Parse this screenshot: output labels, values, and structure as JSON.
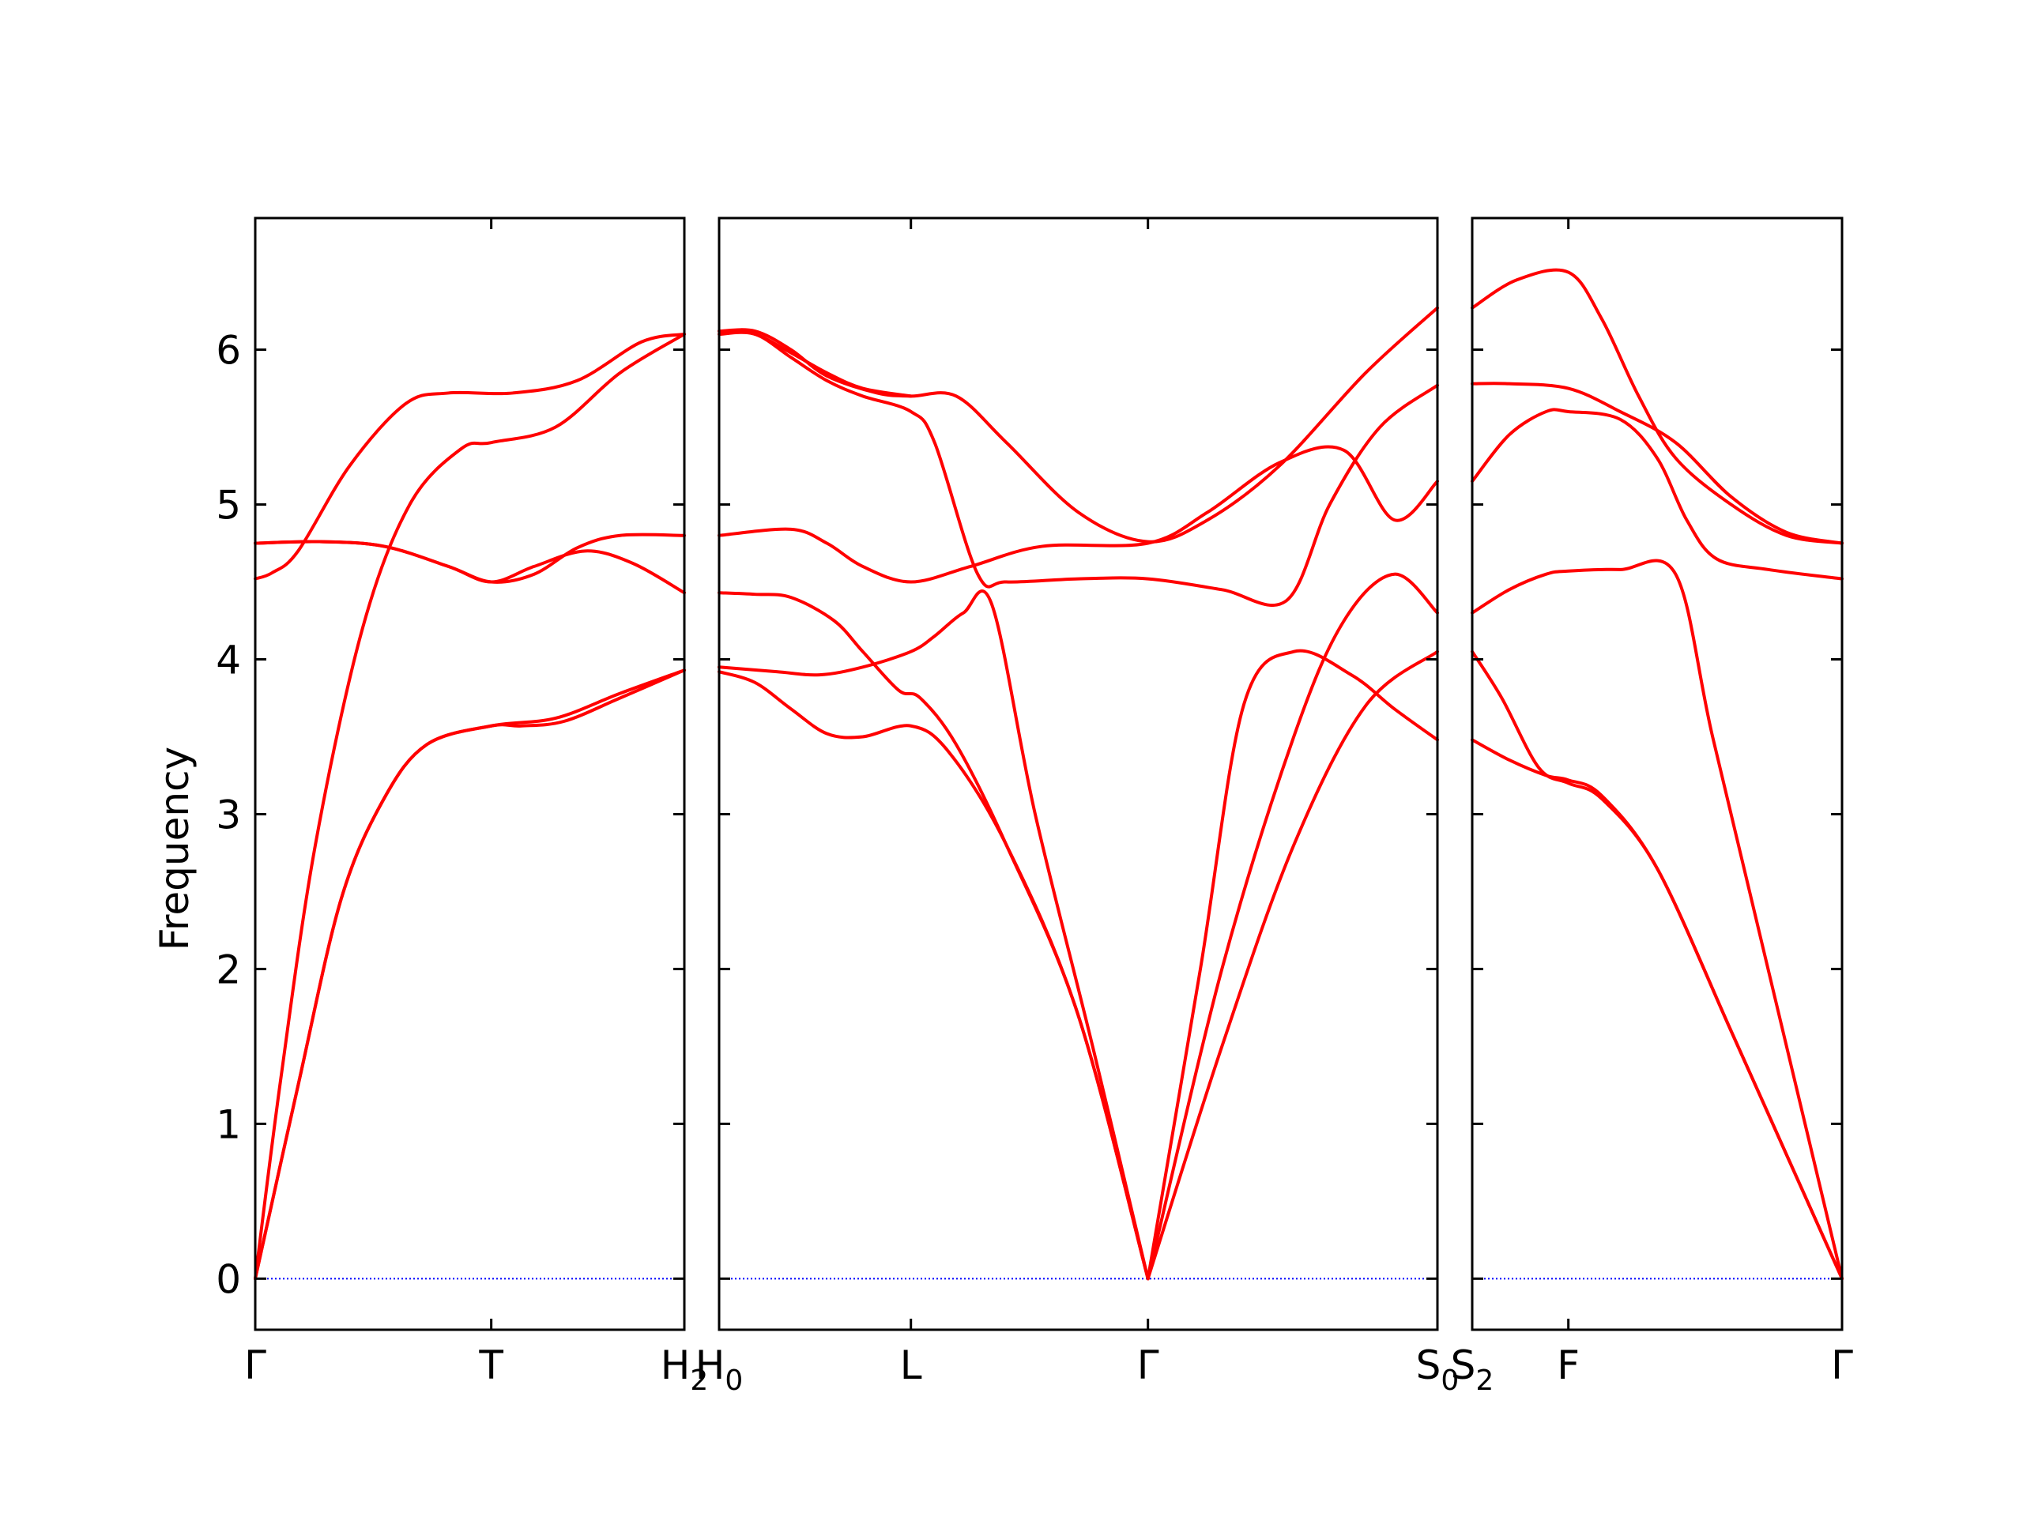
{
  "chart_data": {
    "type": "line",
    "title": "",
    "ylabel": "Frequency",
    "ylim": [
      -0.33,
      6.85
    ],
    "y_ticks": [
      0,
      1,
      2,
      3,
      4,
      5,
      6
    ],
    "grid": false,
    "legend": "none",
    "colors": {
      "bands": "#ff0000",
      "zero_line": "#0000ff",
      "frame": "#000000"
    },
    "panels": [
      {
        "name": "panel-1",
        "x_labels": [
          {
            "base": "Γ",
            "sub": ""
          },
          {
            "base": "T",
            "sub": ""
          },
          {
            "base": "H",
            "sub": "2"
          }
        ],
        "x_ticks": [
          0,
          0.55,
          1
        ],
        "series": [
          {
            "points": [
              [
                0,
                0
              ],
              [
                0.1,
                1.25
              ],
              [
                0.2,
                2.45
              ],
              [
                0.3,
                3.1
              ],
              [
                0.4,
                3.45
              ],
              [
                0.55,
                3.57
              ],
              [
                0.7,
                3.62
              ],
              [
                0.85,
                3.78
              ],
              [
                1,
                3.93
              ]
            ]
          },
          {
            "points": [
              [
                0,
                0
              ],
              [
                0.06,
                1.3
              ],
              [
                0.14,
                2.8
              ],
              [
                0.25,
                4.2
              ],
              [
                0.36,
                5.0
              ],
              [
                0.48,
                5.36
              ],
              [
                0.55,
                5.4
              ],
              [
                0.7,
                5.5
              ],
              [
                0.85,
                5.85
              ],
              [
                1,
                6.1
              ]
            ]
          },
          {
            "points": [
              [
                0,
                0
              ],
              [
                0.1,
                1.25
              ],
              [
                0.2,
                2.45
              ],
              [
                0.3,
                3.1
              ],
              [
                0.4,
                3.45
              ],
              [
                0.55,
                3.57
              ],
              [
                0.62,
                3.57
              ],
              [
                0.72,
                3.6
              ],
              [
                0.85,
                3.75
              ],
              [
                1,
                3.93
              ]
            ]
          },
          {
            "points": [
              [
                0,
                4.52
              ],
              [
                0.04,
                4.56
              ],
              [
                0.1,
                4.7
              ],
              [
                0.22,
                5.25
              ],
              [
                0.35,
                5.65
              ],
              [
                0.45,
                5.72
              ],
              [
                0.6,
                5.72
              ],
              [
                0.75,
                5.8
              ],
              [
                0.9,
                6.05
              ],
              [
                1,
                6.1
              ]
            ]
          },
          {
            "points": [
              [
                0,
                4.75
              ],
              [
                0.15,
                4.76
              ],
              [
                0.3,
                4.73
              ],
              [
                0.45,
                4.6
              ],
              [
                0.55,
                4.5
              ],
              [
                0.65,
                4.55
              ],
              [
                0.75,
                4.72
              ],
              [
                0.85,
                4.8
              ],
              [
                1,
                4.8
              ]
            ]
          },
          {
            "points": [
              [
                0,
                4.75
              ],
              [
                0.15,
                4.76
              ],
              [
                0.3,
                4.73
              ],
              [
                0.45,
                4.6
              ],
              [
                0.55,
                4.5
              ],
              [
                0.65,
                4.6
              ],
              [
                0.77,
                4.7
              ],
              [
                0.88,
                4.62
              ],
              [
                1,
                4.43
              ]
            ]
          }
        ]
      },
      {
        "name": "panel-2",
        "x_labels": [
          {
            "base": "H",
            "sub": "0"
          },
          {
            "base": "L",
            "sub": ""
          },
          {
            "base": "Γ",
            "sub": ""
          },
          {
            "base": "S",
            "sub": "0"
          }
        ],
        "x_ticks": [
          0,
          0.267,
          0.597,
          1
        ],
        "series": [
          {
            "points": [
              [
                0,
                3.92
              ],
              [
                0.05,
                3.85
              ],
              [
                0.1,
                3.68
              ],
              [
                0.15,
                3.52
              ],
              [
                0.2,
                3.5
              ],
              [
                0.267,
                3.57
              ],
              [
                0.32,
                3.4
              ],
              [
                0.4,
                2.8
              ],
              [
                0.5,
                1.7
              ],
              [
                0.597,
                0
              ]
            ]
          },
          {
            "points": [
              [
                0,
                3.95
              ],
              [
                0.08,
                3.92
              ],
              [
                0.14,
                3.9
              ],
              [
                0.2,
                3.95
              ],
              [
                0.267,
                4.05
              ],
              [
                0.3,
                4.15
              ],
              [
                0.34,
                4.3
              ],
              [
                0.38,
                4.35
              ],
              [
                0.44,
                3.0
              ],
              [
                0.52,
                1.5
              ],
              [
                0.597,
                0
              ]
            ]
          },
          {
            "points": [
              [
                0,
                4.43
              ],
              [
                0.05,
                4.42
              ],
              [
                0.1,
                4.4
              ],
              [
                0.16,
                4.25
              ],
              [
                0.2,
                4.05
              ],
              [
                0.25,
                3.8
              ],
              [
                0.28,
                3.75
              ],
              [
                0.33,
                3.45
              ],
              [
                0.4,
                2.8
              ],
              [
                0.5,
                1.7
              ],
              [
                0.597,
                0
              ]
            ]
          },
          {
            "points": [
              [
                0,
                4.8
              ],
              [
                0.1,
                4.84
              ],
              [
                0.15,
                4.75
              ],
              [
                0.2,
                4.6
              ],
              [
                0.267,
                4.5
              ],
              [
                0.35,
                4.6
              ],
              [
                0.45,
                4.73
              ],
              [
                0.597,
                4.75
              ],
              [
                0.68,
                4.95
              ],
              [
                0.78,
                5.27
              ],
              [
                0.87,
                5.35
              ],
              [
                0.94,
                4.9
              ],
              [
                1,
                5.15
              ]
            ]
          },
          {
            "points": [
              [
                0,
                6.1
              ],
              [
                0.05,
                6.1
              ],
              [
                0.1,
                5.95
              ],
              [
                0.15,
                5.8
              ],
              [
                0.2,
                5.7
              ],
              [
                0.267,
                5.6
              ],
              [
                0.3,
                5.4
              ],
              [
                0.36,
                4.55
              ],
              [
                0.4,
                4.5
              ],
              [
                0.5,
                4.52
              ],
              [
                0.597,
                4.52
              ],
              [
                0.7,
                4.45
              ],
              [
                0.79,
                4.38
              ],
              [
                0.85,
                5.0
              ],
              [
                0.92,
                5.5
              ],
              [
                1,
                5.77
              ]
            ]
          },
          {
            "points": [
              [
                0,
                6.12
              ],
              [
                0.05,
                6.12
              ],
              [
                0.1,
                6.0
              ],
              [
                0.15,
                5.83
              ],
              [
                0.22,
                5.72
              ],
              [
                0.267,
                5.7
              ],
              [
                0.33,
                5.7
              ],
              [
                0.4,
                5.4
              ],
              [
                0.5,
                4.95
              ],
              [
                0.597,
                4.76
              ],
              [
                0.68,
                4.9
              ],
              [
                0.78,
                5.25
              ],
              [
                0.9,
                5.85
              ],
              [
                1,
                6.27
              ]
            ]
          },
          {
            "points": [
              [
                0,
                6.12
              ],
              [
                0.05,
                6.1
              ],
              [
                0.1,
                5.98
              ],
              [
                0.15,
                5.85
              ],
              [
                0.2,
                5.75
              ],
              [
                0.267,
                5.7
              ]
            ]
          },
          {
            "points": [
              [
                0.597,
                0
              ],
              [
                0.67,
                2.0
              ],
              [
                0.73,
                3.7
              ],
              [
                0.8,
                4.05
              ],
              [
                0.88,
                3.9
              ],
              [
                0.94,
                3.68
              ],
              [
                1,
                3.48
              ]
            ]
          },
          {
            "points": [
              [
                0.597,
                0
              ],
              [
                0.7,
                1.5
              ],
              [
                0.8,
                2.8
              ],
              [
                0.9,
                3.7
              ],
              [
                1,
                4.05
              ]
            ]
          },
          {
            "points": [
              [
                0.597,
                0
              ],
              [
                0.7,
                2.0
              ],
              [
                0.8,
                3.5
              ],
              [
                0.87,
                4.25
              ],
              [
                0.94,
                4.55
              ],
              [
                1,
                4.3
              ]
            ]
          }
        ]
      },
      {
        "name": "panel-3",
        "x_labels": [
          {
            "base": "S",
            "sub": "2"
          },
          {
            "base": "F",
            "sub": ""
          },
          {
            "base": "Γ",
            "sub": ""
          }
        ],
        "x_ticks": [
          0,
          0.26,
          1
        ],
        "series": [
          {
            "points": [
              [
                0,
                4.05
              ],
              [
                0.08,
                3.75
              ],
              [
                0.18,
                3.3
              ],
              [
                0.26,
                3.2
              ],
              [
                0.35,
                3.1
              ],
              [
                0.5,
                2.65
              ],
              [
                0.7,
                1.6
              ],
              [
                0.85,
                0.8
              ],
              [
                1,
                0
              ]
            ]
          },
          {
            "points": [
              [
                0,
                3.48
              ],
              [
                0.1,
                3.35
              ],
              [
                0.2,
                3.25
              ],
              [
                0.26,
                3.22
              ],
              [
                0.35,
                3.12
              ],
              [
                0.5,
                2.65
              ],
              [
                0.7,
                1.6
              ],
              [
                0.85,
                0.8
              ],
              [
                1,
                0
              ]
            ]
          },
          {
            "points": [
              [
                0,
                4.3
              ],
              [
                0.1,
                4.45
              ],
              [
                0.2,
                4.55
              ],
              [
                0.26,
                4.57
              ],
              [
                0.4,
                4.58
              ],
              [
                0.55,
                4.55
              ],
              [
                0.65,
                3.5
              ],
              [
                0.8,
                2.0
              ],
              [
                1,
                0
              ]
            ]
          },
          {
            "points": [
              [
                0,
                5.15
              ],
              [
                0.1,
                5.45
              ],
              [
                0.2,
                5.6
              ],
              [
                0.26,
                5.6
              ],
              [
                0.4,
                5.55
              ],
              [
                0.5,
                5.3
              ],
              [
                0.58,
                4.9
              ],
              [
                0.66,
                4.65
              ],
              [
                0.8,
                4.58
              ],
              [
                1,
                4.52
              ]
            ]
          },
          {
            "points": [
              [
                0,
                5.78
              ],
              [
                0.1,
                5.78
              ],
              [
                0.26,
                5.75
              ],
              [
                0.4,
                5.6
              ],
              [
                0.55,
                5.4
              ],
              [
                0.7,
                5.05
              ],
              [
                0.85,
                4.82
              ],
              [
                1,
                4.75
              ]
            ]
          },
          {
            "points": [
              [
                0,
                6.27
              ],
              [
                0.12,
                6.45
              ],
              [
                0.26,
                6.5
              ],
              [
                0.35,
                6.2
              ],
              [
                0.45,
                5.7
              ],
              [
                0.55,
                5.3
              ],
              [
                0.7,
                5.0
              ],
              [
                0.85,
                4.8
              ],
              [
                1,
                4.75
              ]
            ]
          }
        ]
      }
    ]
  }
}
